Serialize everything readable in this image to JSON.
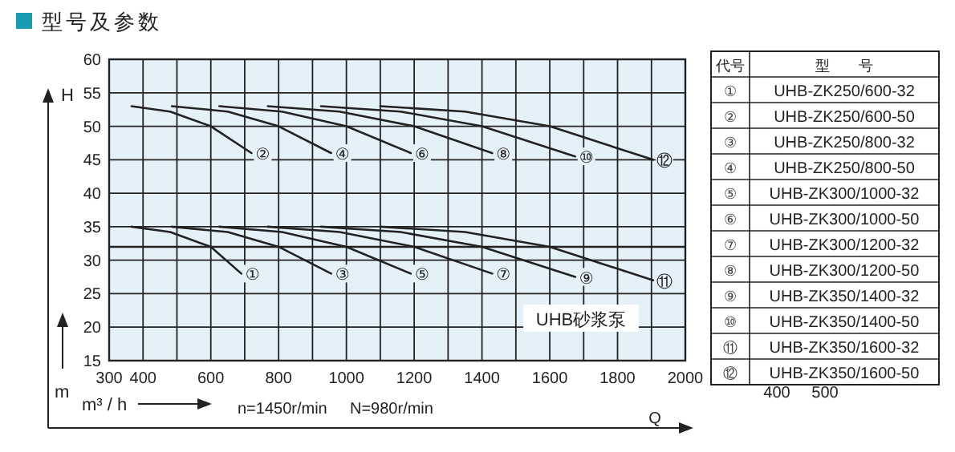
{
  "chart_data": {
    "type": "line",
    "title": "型号及参数",
    "xlabel": "Q",
    "ylabel": "H",
    "xlim": [
      300,
      2000
    ],
    "ylim": [
      15,
      60
    ],
    "xticks": [
      300,
      400,
      {
        "value": 500,
        "label": null
      },
      600,
      {
        "value": 700,
        "label": null
      },
      800,
      {
        "value": 900,
        "label": null
      },
      1000,
      {
        "value": 1100,
        "label": null
      },
      1200,
      {
        "value": 1300,
        "label": null
      },
      1400,
      {
        "value": 1500,
        "label": null
      },
      1600,
      {
        "value": 1700,
        "label": null
      },
      1800,
      {
        "value": 1900,
        "label": null
      },
      2000
    ],
    "yticks": [
      15,
      20,
      25,
      30,
      35,
      40,
      45,
      50,
      55,
      60
    ],
    "grid": true,
    "line_style": "solid",
    "ref_lines": [
      {
        "axis": "y",
        "value": 32,
        "label": null
      }
    ],
    "series": [
      {
        "name": "①",
        "color": "#222222",
        "x": [
          366,
          480,
          600,
          690
        ],
        "values": [
          35,
          34.2,
          32,
          28
        ]
      },
      {
        "name": "②",
        "color": "#222222",
        "x": [
          366,
          480,
          600,
          720
        ],
        "values": [
          53,
          52.2,
          50,
          46
        ]
      },
      {
        "name": "③",
        "color": "#222222",
        "x": [
          485,
          650,
          800,
          955
        ],
        "values": [
          35,
          34.2,
          32,
          28
        ]
      },
      {
        "name": "④",
        "color": "#222222",
        "x": [
          485,
          650,
          800,
          955
        ],
        "values": [
          53,
          52.2,
          50,
          46
        ]
      },
      {
        "name": "⑤",
        "color": "#222222",
        "x": [
          625,
          810,
          1000,
          1190
        ],
        "values": [
          35,
          34.2,
          32,
          28
        ]
      },
      {
        "name": "⑥",
        "color": "#222222",
        "x": [
          625,
          810,
          1000,
          1190
        ],
        "values": [
          53,
          52.2,
          50,
          46
        ]
      },
      {
        "name": "⑦",
        "color": "#222222",
        "x": [
          768,
          980,
          1200,
          1430
        ],
        "values": [
          35,
          34.2,
          32,
          28
        ]
      },
      {
        "name": "⑧",
        "color": "#222222",
        "x": [
          768,
          980,
          1200,
          1430
        ],
        "values": [
          53,
          52.2,
          50,
          46
        ]
      },
      {
        "name": "⑨",
        "color": "#222222",
        "x": [
          925,
          1160,
          1400,
          1675
        ],
        "values": [
          35,
          34.2,
          32,
          27.5
        ]
      },
      {
        "name": "⑩",
        "color": "#222222",
        "x": [
          925,
          1160,
          1400,
          1675
        ],
        "values": [
          53,
          52.2,
          50,
          45.5
        ]
      },
      {
        "name": "⑪",
        "color": "#222222",
        "x": [
          1100,
          1350,
          1600,
          1905
        ],
        "values": [
          35,
          34.2,
          32,
          27
        ]
      },
      {
        "name": "⑫",
        "color": "#222222",
        "x": [
          1100,
          1350,
          1600,
          1905
        ],
        "values": [
          53,
          52.2,
          50,
          45
        ]
      }
    ],
    "annotations": [
      "m",
      "m³ / h",
      "n=1450r/min",
      "N=980r/min",
      "UHB砂浆泵",
      "代号",
      "型　　号",
      "UHB-ZK250/600-32",
      "UHB-ZK250/600-50",
      "UHB-ZK250/800-32",
      "UHB-ZK250/800-50",
      "UHB-ZK300/1000-32",
      "UHB-ZK300/1000-50",
      "UHB-ZK300/1200-32",
      "UHB-ZK300/1200-50",
      "UHB-ZK350/1400-32",
      "UHB-ZK350/1400-50",
      "UHB-ZK350/1600-32",
      "UHB-ZK350/1600-50",
      "400",
      "500"
    ]
  }
}
